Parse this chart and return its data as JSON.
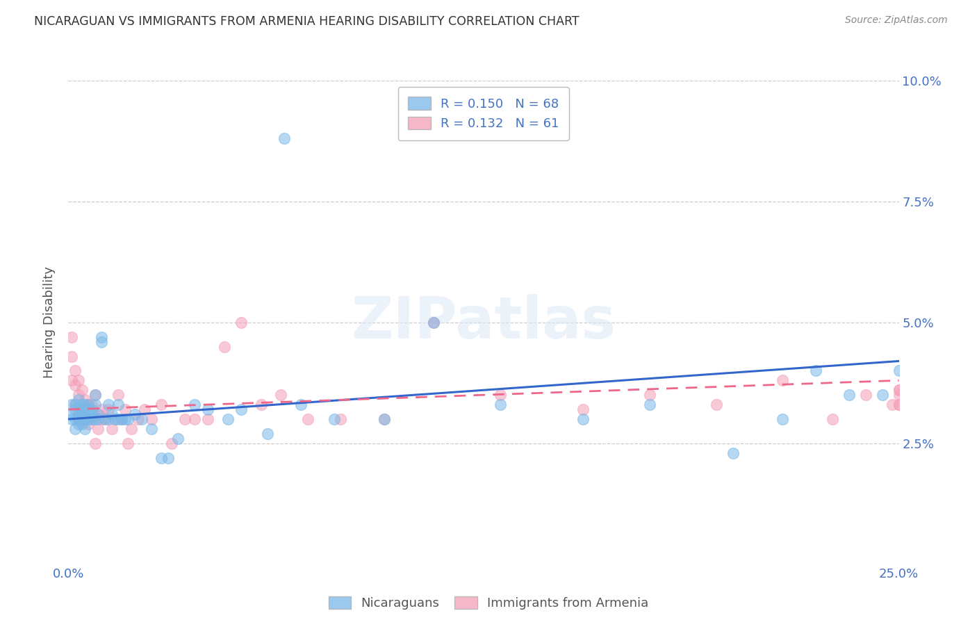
{
  "title": "NICARAGUAN VS IMMIGRANTS FROM ARMENIA HEARING DISABILITY CORRELATION CHART",
  "source": "Source: ZipAtlas.com",
  "ylabel": "Hearing Disability",
  "xlim": [
    0.0,
    0.25
  ],
  "ylim": [
    0.0,
    0.1
  ],
  "xtick_positions": [
    0.0,
    0.05,
    0.1,
    0.15,
    0.2,
    0.25
  ],
  "xtick_labels": [
    "0.0%",
    "",
    "",
    "",
    "",
    "25.0%"
  ],
  "ytick_positions": [
    0.025,
    0.05,
    0.075,
    0.1
  ],
  "ytick_labels": [
    "2.5%",
    "5.0%",
    "7.5%",
    "10.0%"
  ],
  "blue_color": "#7ab8e8",
  "pink_color": "#f4a0b8",
  "blue_line_color": "#3366cc",
  "pink_line_color": "#ee6688",
  "legend_R_blue": "0.150",
  "legend_N_blue": "68",
  "legend_R_pink": "0.132",
  "legend_N_pink": "61",
  "watermark": "ZIPatlas",
  "title_color": "#333333",
  "axis_color": "#4472c4",
  "source_color": "#888888",
  "ylabel_color": "#555555",
  "background_color": "#ffffff",
  "grid_color": "#cccccc",
  "nicaraguan_x": [
    0.001,
    0.001,
    0.001,
    0.002,
    0.002,
    0.002,
    0.002,
    0.003,
    0.003,
    0.003,
    0.003,
    0.003,
    0.004,
    0.004,
    0.004,
    0.004,
    0.005,
    0.005,
    0.005,
    0.005,
    0.006,
    0.006,
    0.006,
    0.007,
    0.007,
    0.007,
    0.008,
    0.008,
    0.008,
    0.009,
    0.009,
    0.01,
    0.01,
    0.011,
    0.012,
    0.012,
    0.013,
    0.014,
    0.015,
    0.015,
    0.016,
    0.017,
    0.018,
    0.02,
    0.022,
    0.025,
    0.028,
    0.03,
    0.033,
    0.038,
    0.042,
    0.048,
    0.052,
    0.06,
    0.065,
    0.07,
    0.08,
    0.095,
    0.11,
    0.13,
    0.155,
    0.175,
    0.2,
    0.215,
    0.225,
    0.235,
    0.245,
    0.25
  ],
  "nicaraguan_y": [
    0.031,
    0.033,
    0.03,
    0.032,
    0.03,
    0.033,
    0.028,
    0.031,
    0.034,
    0.029,
    0.032,
    0.03,
    0.031,
    0.033,
    0.029,
    0.032,
    0.03,
    0.033,
    0.028,
    0.031,
    0.032,
    0.03,
    0.033,
    0.031,
    0.03,
    0.032,
    0.035,
    0.03,
    0.033,
    0.031,
    0.03,
    0.047,
    0.046,
    0.03,
    0.03,
    0.033,
    0.031,
    0.03,
    0.03,
    0.033,
    0.03,
    0.03,
    0.03,
    0.031,
    0.03,
    0.028,
    0.022,
    0.022,
    0.026,
    0.033,
    0.032,
    0.03,
    0.032,
    0.027,
    0.088,
    0.033,
    0.03,
    0.03,
    0.05,
    0.033,
    0.03,
    0.033,
    0.023,
    0.03,
    0.04,
    0.035,
    0.035,
    0.04
  ],
  "armenian_x": [
    0.001,
    0.001,
    0.001,
    0.002,
    0.002,
    0.002,
    0.003,
    0.003,
    0.003,
    0.004,
    0.004,
    0.005,
    0.005,
    0.006,
    0.006,
    0.007,
    0.007,
    0.008,
    0.008,
    0.009,
    0.009,
    0.01,
    0.01,
    0.011,
    0.012,
    0.013,
    0.014,
    0.015,
    0.016,
    0.017,
    0.018,
    0.019,
    0.021,
    0.023,
    0.025,
    0.028,
    0.031,
    0.035,
    0.038,
    0.042,
    0.047,
    0.052,
    0.058,
    0.064,
    0.072,
    0.082,
    0.095,
    0.11,
    0.13,
    0.155,
    0.175,
    0.195,
    0.215,
    0.23,
    0.24,
    0.248,
    0.25,
    0.25,
    0.25,
    0.25,
    0.25
  ],
  "armenian_y": [
    0.047,
    0.043,
    0.038,
    0.04,
    0.037,
    0.033,
    0.038,
    0.035,
    0.03,
    0.036,
    0.032,
    0.034,
    0.03,
    0.033,
    0.029,
    0.033,
    0.03,
    0.035,
    0.025,
    0.031,
    0.028,
    0.032,
    0.03,
    0.03,
    0.032,
    0.028,
    0.03,
    0.035,
    0.03,
    0.032,
    0.025,
    0.028,
    0.03,
    0.032,
    0.03,
    0.033,
    0.025,
    0.03,
    0.03,
    0.03,
    0.045,
    0.05,
    0.033,
    0.035,
    0.03,
    0.03,
    0.03,
    0.05,
    0.035,
    0.032,
    0.035,
    0.033,
    0.038,
    0.03,
    0.035,
    0.033,
    0.036,
    0.033,
    0.035,
    0.033,
    0.036
  ]
}
